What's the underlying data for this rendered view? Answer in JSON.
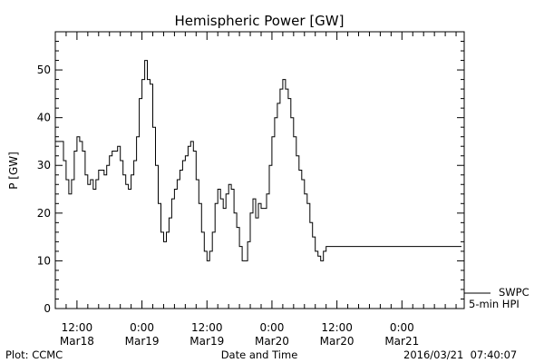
{
  "chart_data": {
    "type": "line",
    "title": "Hemispheric Power [GW]",
    "ylabel": "P [GW]",
    "xlabel": "Date and Time",
    "ylim": [
      0,
      58
    ],
    "xlim_hours": [
      -4,
      71.5
    ],
    "y_ticks": [
      0,
      10,
      20,
      30,
      40,
      50
    ],
    "x_ticks": [
      {
        "time": "12:00",
        "date": "Mar18",
        "hour": 0
      },
      {
        "time": "0:00",
        "date": "Mar19",
        "hour": 12
      },
      {
        "time": "12:00",
        "date": "Mar19",
        "hour": 24
      },
      {
        "time": "0:00",
        "date": "Mar20",
        "hour": 36
      },
      {
        "time": "12:00",
        "date": "Mar20",
        "hour": 48
      },
      {
        "time": "0:00",
        "date": "Mar21",
        "hour": 60
      }
    ],
    "grid": false,
    "legend_position": "bottom-right",
    "series": [
      {
        "name": "SWPC",
        "x": [
          -4,
          -3.5,
          -3,
          -2.5,
          -2,
          -1.5,
          -1,
          -0.5,
          0,
          0.5,
          1,
          1.5,
          2,
          2.5,
          3,
          3.5,
          4,
          4.5,
          5,
          5.5,
          6,
          6.5,
          7,
          7.5,
          8,
          8.5,
          9,
          9.5,
          10,
          10.5,
          11,
          11.5,
          12,
          12.5,
          13,
          13.5,
          14,
          14.5,
          15,
          15.5,
          16,
          16.5,
          17,
          17.5,
          18,
          18.5,
          19,
          19.5,
          20,
          20.5,
          21,
          21.5,
          22,
          22.5,
          23,
          23.5,
          24,
          24.5,
          25,
          25.5,
          26,
          26.5,
          27,
          27.5,
          28,
          28.5,
          29,
          29.5,
          30,
          30.5,
          31,
          31.5,
          32,
          32.5,
          33,
          33.5,
          34,
          34.5,
          35,
          35.5,
          36,
          36.5,
          37,
          37.5,
          38,
          38.5,
          39,
          39.5,
          40,
          40.5,
          41,
          41.5,
          42,
          42.5,
          43,
          43.5,
          44,
          44.5,
          45,
          45.5,
          46,
          46.5,
          47,
          47.5,
          48,
          48.5,
          49,
          49.5,
          50,
          50.5,
          51,
          51.5,
          52,
          52.5,
          53,
          53.5,
          54,
          54.5,
          55,
          55.5,
          56,
          56.5,
          57,
          57.5,
          58,
          58.5,
          59,
          59.5,
          60,
          60.5,
          61,
          61.5,
          62,
          62.5,
          63,
          63.5,
          64,
          64.5,
          65,
          65.5,
          66,
          66.5,
          67,
          67.5,
          68,
          68.5,
          69,
          69.5,
          70,
          70.5,
          71
        ],
        "values": [
          35,
          35,
          35,
          31,
          27,
          24,
          27,
          33,
          36,
          35,
          33,
          28,
          26,
          27,
          25,
          27,
          29,
          29,
          28,
          30,
          32,
          33,
          33,
          34,
          31,
          28,
          26,
          25,
          28,
          31,
          36,
          44,
          48,
          52,
          48,
          47,
          38,
          30,
          22,
          16,
          14,
          16,
          19,
          23,
          25,
          27,
          29,
          31,
          32,
          34,
          35,
          33,
          27,
          22,
          16,
          12,
          10,
          12,
          16,
          22,
          25,
          23,
          21,
          24,
          26,
          25,
          20,
          17,
          13,
          10,
          10,
          14,
          20,
          23,
          19,
          22,
          21,
          21,
          24,
          30,
          36,
          40,
          43,
          46,
          48,
          46,
          44,
          40,
          36,
          32,
          29,
          27,
          24,
          22,
          18,
          15,
          12,
          11,
          10,
          12,
          13,
          13,
          13,
          13,
          13,
          13,
          13,
          13,
          13,
          13,
          13,
          13,
          13,
          13,
          13,
          13,
          13,
          13,
          13,
          13,
          13,
          13,
          13,
          13,
          13,
          13,
          13,
          13,
          13,
          13,
          13,
          13,
          13,
          13,
          13,
          13,
          13,
          13,
          13,
          13,
          13,
          13,
          13,
          13,
          13,
          13,
          13,
          13,
          13,
          13,
          13
        ]
      },
      {
        "name": "5-min HPI"
      }
    ]
  },
  "footer": {
    "plot_credit": "Plot: CCMC",
    "timestamp": "2016/03/21  07:40:07"
  }
}
